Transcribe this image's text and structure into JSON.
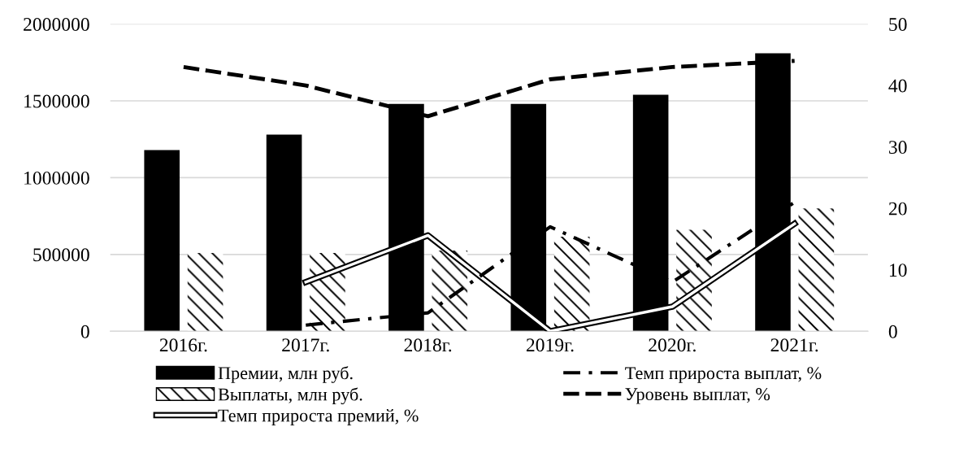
{
  "chart_data": {
    "type": "bar",
    "categories": [
      "2016г.",
      "2017г.",
      "2018г.",
      "2019г.",
      "2020г.",
      "2021г."
    ],
    "series": [
      {
        "name": "Премии, млн руб.",
        "color": "#000000",
        "values": [
          1180000,
          1280000,
          1480000,
          1480000,
          1540000,
          1810000
        ]
      },
      {
        "name": "Выплаты, млн руб.",
        "color": "#ffffff",
        "values": [
          510000,
          510000,
          525000,
          615000,
          660000,
          800000
        ]
      },
      {
        "name": "Темп прироста премий, %",
        "type": "line",
        "axis": "y2",
        "color": "#000000",
        "line_style": "solid",
        "values": [
          null,
          8,
          15.6,
          0,
          4,
          17.5
        ]
      },
      {
        "name": "Темп прироста выплат, %",
        "type": "line",
        "axis": "y2",
        "color": "#000000",
        "line_style": "dashdot",
        "values": [
          null,
          1,
          3,
          17,
          8,
          21
        ]
      },
      {
        "name": "Уровень выплат, %",
        "type": "line",
        "axis": "y2",
        "color": "#000000",
        "line_style": "dashed",
        "values": [
          43,
          40,
          35,
          41,
          43,
          44
        ]
      }
    ],
    "ylim": [
      0,
      2000000
    ],
    "yticks": [
      0,
      500000,
      1000000,
      1500000,
      2000000
    ],
    "y2lim": [
      0,
      50
    ],
    "y2ticks": [
      0,
      10,
      20,
      30,
      40,
      50
    ],
    "grid": "y",
    "legend": "bottom"
  }
}
